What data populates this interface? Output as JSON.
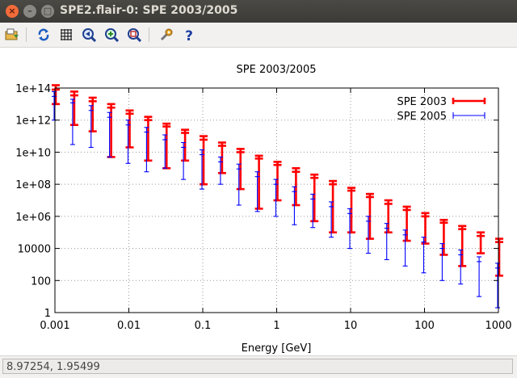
{
  "window": {
    "title": "SPE2.flair-0: SPE 2003/2005"
  },
  "toolbar": {
    "icons": [
      "open-icon",
      "refresh-icon",
      "grid-icon",
      "zoom-back-icon",
      "zoom-in-icon",
      "zoom-fit-icon",
      "settings-icon",
      "help-icon"
    ]
  },
  "status": {
    "coordinates": "8.97254,  1.95499"
  },
  "chart_data": {
    "type": "scatter",
    "title": "SPE 2003/2005",
    "xlabel": "Energy [GeV]",
    "ylabel": "",
    "xscale": "log",
    "yscale": "log",
    "xlim": [
      0.001,
      1000
    ],
    "ylim": [
      1,
      100000000000000.0
    ],
    "xticks": [
      "0.001",
      "0.01",
      "0.1",
      "1",
      "10",
      "100",
      "1000"
    ],
    "yticks": [
      "1",
      "100",
      "10000",
      "1e+06",
      "1e+08",
      "1e+10",
      "1e+12",
      "1e+14"
    ],
    "grid": true,
    "legend_position": "top-right",
    "series": [
      {
        "name": "SPE 2003",
        "color": "#ff0000",
        "style": "errorbars",
        "x": [
          0.001,
          0.00178,
          0.00316,
          0.00562,
          0.01,
          0.0178,
          0.0316,
          0.0562,
          0.1,
          0.178,
          0.316,
          0.562,
          1,
          1.78,
          3.16,
          5.62,
          10,
          17.8,
          31.6,
          56.2,
          100,
          178,
          316,
          562,
          1000
        ],
        "y": [
          80000000000000.0,
          35000000000000.0,
          15000000000000.0,
          6000000000000.0,
          2500000000000.0,
          1000000000000.0,
          400000000000.0,
          160000000000.0,
          60000000000.0,
          25000000000.0,
          10000000000.0,
          4000000000.0,
          1600000000.0,
          600000000.0,
          250000000.0,
          100000000.0,
          40000000.0,
          16000000.0,
          6000000.0,
          2500000.0,
          1000000.0,
          400000.0,
          160000.0,
          60000.0,
          25000.0
        ],
        "ylow": [
          10000000000000.0,
          500000000000.0,
          200000000000.0,
          5000000000.0,
          20000000000.0,
          3000000000.0,
          1000000000.0,
          3000000000.0,
          100000000.0,
          500000000.0,
          50000000.0,
          3000000.0,
          10000000.0,
          5000000.0,
          500000.0,
          100000.0,
          100000.0,
          40000.0,
          100000.0,
          30000.0,
          20000.0,
          4000.0,
          800,
          5000.0,
          200
        ],
        "yhigh": [
          150000000000000.0,
          60000000000000.0,
          25000000000000.0,
          10000000000000.0,
          4000000000000.0,
          1600000000000.0,
          600000000000.0,
          250000000000.0,
          100000000000.0,
          40000000000.0,
          16000000000.0,
          6000000000.0,
          2500000000.0,
          1000000000.0,
          400000000.0,
          160000000.0,
          60000000.0,
          25000000.0,
          10000000.0,
          4000000.0,
          1600000.0,
          600000.0,
          250000.0,
          100000.0,
          40000.0
        ]
      },
      {
        "name": "SPE 2005",
        "color": "#0000ff",
        "style": "errorbars",
        "x": [
          0.001,
          0.00178,
          0.00316,
          0.00562,
          0.01,
          0.0178,
          0.0316,
          0.0562,
          0.1,
          0.178,
          0.316,
          0.562,
          1,
          1.78,
          3.16,
          5.62,
          10,
          17.8,
          31.6,
          56.2,
          100,
          178,
          316,
          562,
          1000
        ],
        "y": [
          30000000000000.0,
          12000000000000.0,
          4000000000000.0,
          1500000000000.0,
          500000000000.0,
          180000000000.0,
          60000000000.0,
          20000000000.0,
          7000000000.0,
          2500000000.0,
          900000000.0,
          300000000.0,
          100000000.0,
          35000000.0,
          12000000.0,
          4000000.0,
          1500000.0,
          500000.0,
          180000.0,
          70000.0,
          25000.0,
          10000.0,
          4000.0,
          1500.0,
          600
        ],
        "ylow": [
          1000000000000.0,
          30000000000.0,
          20000000000.0,
          5000000000.0,
          2000000000.0,
          600000000.0,
          1000000000.0,
          200000000.0,
          50000000.0,
          100000000.0,
          5000000.0,
          2000000.0,
          1000000.0,
          300000.0,
          200000.0,
          50000.0,
          10000.0,
          5000.0,
          2000.0,
          800,
          300,
          100,
          60,
          10,
          2
        ],
        "yhigh": [
          60000000000000.0,
          20000000000000.0,
          8000000000000.0,
          3000000000000.0,
          1000000000000.0,
          350000000000.0,
          120000000000.0,
          40000000000.0,
          14000000000.0,
          5000000000.0,
          1800000000.0,
          600000000.0,
          200000000.0,
          70000000.0,
          24000000.0,
          8000000.0,
          3000000.0,
          1000000.0,
          360000.0,
          140000.0,
          50000.0,
          20000.0,
          8000.0,
          3000.0,
          1200.0
        ]
      }
    ]
  }
}
